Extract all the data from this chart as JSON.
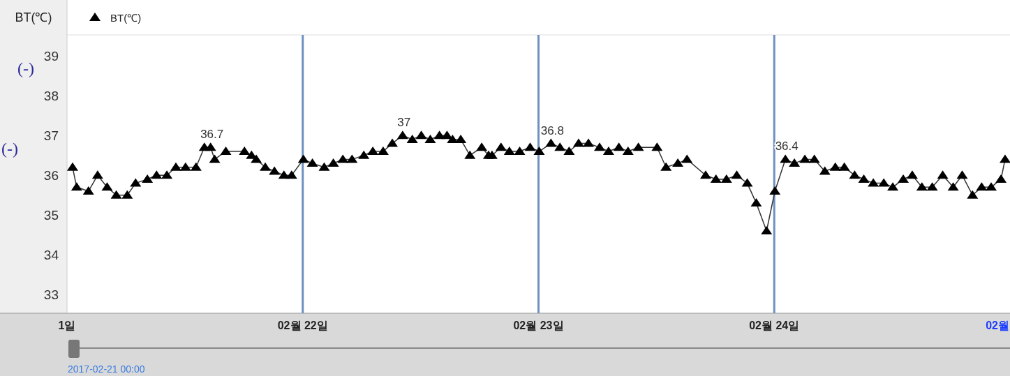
{
  "chart_data": {
    "type": "line",
    "ylabel": "BT(℃)",
    "marker": "triangle",
    "legend": "top left",
    "xlim": [
      "2017-02-21T00:00",
      "2017-02-25T00:00"
    ],
    "ylim": [
      32.53,
      39.53
    ],
    "xticks": [
      {
        "value": "2017-02-21T00:00",
        "label": "1일"
      },
      {
        "value": "2017-02-22T00:00",
        "label": "02월 22일"
      },
      {
        "value": "2017-02-23T00:00",
        "label": "02월 23일"
      },
      {
        "value": "2017-02-24T00:00",
        "label": "02월 24일"
      },
      {
        "value": "2017-02-25T00:00",
        "label": "02월"
      }
    ],
    "yticks": [
      33,
      34,
      35,
      36,
      37,
      38,
      39
    ],
    "ref_lines": [
      {
        "axis": "x",
        "value": "2017-02-22T00:00",
        "color": "#6f90c0"
      },
      {
        "axis": "x",
        "value": "2017-02-23T00:00",
        "color": "#6f90c0"
      },
      {
        "axis": "x",
        "value": "2017-02-24T00:00",
        "color": "#6f90c0"
      }
    ],
    "series": [
      {
        "name": "BT(℃)",
        "color": "#000000",
        "x": [
          "2017-02-21T00:34",
          "2017-02-21T00:59",
          "2017-02-21T02:11",
          "2017-02-21T03:07",
          "2017-02-21T04:05",
          "2017-02-21T05:01",
          "2017-02-21T06:08",
          "2017-02-21T06:59",
          "2017-02-21T08:11",
          "2017-02-21T09:07",
          "2017-02-21T10:10",
          "2017-02-21T11:05",
          "2017-02-21T12:04",
          "2017-02-21T13:08",
          "2017-02-21T13:59",
          "2017-02-21T14:37",
          "2017-02-21T15:02",
          "2017-02-21T16:10",
          "2017-02-21T18:04",
          "2017-02-21T18:47",
          "2017-02-21T19:16",
          "2017-02-21T20:11",
          "2017-02-21T21:07",
          "2017-02-21T22:05",
          "2017-02-21T22:52",
          "2017-02-22T00:04",
          "2017-02-22T00:59",
          "2017-02-22T02:11",
          "2017-02-22T03:07",
          "2017-02-22T04:05",
          "2017-02-22T05:01",
          "2017-02-22T06:13",
          "2017-02-22T07:08",
          "2017-02-22T08:11",
          "2017-02-22T09:07",
          "2017-02-22T10:10",
          "2017-02-22T11:09",
          "2017-02-22T12:04",
          "2017-02-22T12:59",
          "2017-02-22T13:55",
          "2017-02-22T14:41",
          "2017-02-22T15:15",
          "2017-02-22T16:05",
          "2017-02-22T17:01",
          "2017-02-22T18:13",
          "2017-02-22T18:55",
          "2017-02-22T19:16",
          "2017-02-22T20:11",
          "2017-02-22T21:02",
          "2017-02-22T22:05",
          "2017-02-22T23:09",
          "2017-02-23T00:04",
          "2017-02-23T01:16",
          "2017-02-23T02:11",
          "2017-02-23T03:07",
          "2017-02-23T04:05",
          "2017-02-23T05:05",
          "2017-02-23T06:13",
          "2017-02-23T07:08",
          "2017-02-23T08:11",
          "2017-02-23T09:07",
          "2017-02-23T10:10",
          "2017-02-23T12:04",
          "2017-02-23T12:59",
          "2017-02-23T14:11",
          "2017-02-23T15:07",
          "2017-02-23T17:01",
          "2017-02-23T18:04",
          "2017-02-23T19:08",
          "2017-02-23T20:11",
          "2017-02-23T21:15",
          "2017-02-23T22:10",
          "2017-02-23T23:13",
          "2017-02-24T00:04",
          "2017-02-24T01:08",
          "2017-02-24T02:03",
          "2017-02-24T03:07",
          "2017-02-24T04:05",
          "2017-02-24T05:09",
          "2017-02-24T06:13",
          "2017-02-24T07:08",
          "2017-02-24T08:11",
          "2017-02-24T09:07",
          "2017-02-24T10:05",
          "2017-02-24T11:09",
          "2017-02-24T12:04",
          "2017-02-24T13:08",
          "2017-02-24T14:03",
          "2017-02-24T15:02",
          "2017-02-24T16:05",
          "2017-02-24T17:09",
          "2017-02-24T18:13",
          "2017-02-24T19:08",
          "2017-02-24T20:11",
          "2017-02-24T21:07",
          "2017-02-24T22:05",
          "2017-02-24T23:05",
          "2017-02-24T23:30"
        ],
        "values": [
          36.2,
          35.7,
          35.6,
          36.0,
          35.7,
          35.5,
          35.5,
          35.8,
          35.9,
          36.0,
          36.0,
          36.2,
          36.2,
          36.2,
          36.7,
          36.7,
          36.4,
          36.6,
          36.6,
          36.5,
          36.4,
          36.2,
          36.1,
          36.0,
          36.0,
          36.4,
          36.3,
          36.2,
          36.3,
          36.4,
          36.4,
          36.5,
          36.6,
          36.6,
          36.8,
          37.0,
          36.9,
          37.0,
          36.9,
          37.0,
          37.0,
          36.9,
          36.9,
          36.5,
          36.7,
          36.5,
          36.5,
          36.7,
          36.6,
          36.6,
          36.7,
          36.6,
          36.8,
          36.7,
          36.6,
          36.8,
          36.8,
          36.7,
          36.6,
          36.7,
          36.6,
          36.7,
          36.7,
          36.2,
          36.3,
          36.4,
          36.0,
          35.9,
          35.9,
          36.0,
          35.8,
          35.3,
          34.6,
          35.6,
          36.4,
          36.3,
          36.4,
          36.4,
          36.1,
          36.2,
          36.2,
          36.0,
          35.9,
          35.8,
          35.8,
          35.7,
          35.9,
          36.0,
          35.7,
          35.7,
          36.0,
          35.7,
          36.0,
          35.5,
          35.7,
          35.7,
          35.9,
          36.4
        ]
      }
    ],
    "annotations": [
      {
        "text": "36.7",
        "x": "2017-02-21T14:37",
        "y": 36.7
      },
      {
        "text": "37",
        "x": "2017-02-22T10:10",
        "y": 37.0
      },
      {
        "text": "36.8",
        "x": "2017-02-23T01:16",
        "y": 36.8
      },
      {
        "text": "36.4",
        "x": "2017-02-24T01:08",
        "y": 36.4
      },
      "(-)",
      "(-)",
      "2017-02-21 00:00"
    ]
  }
}
